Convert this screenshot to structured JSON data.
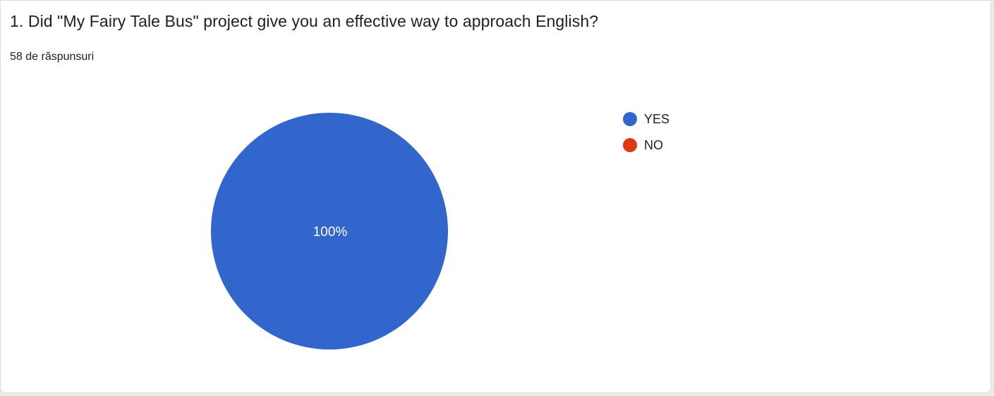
{
  "question": {
    "title": "1. Did \"My Fairy Tale Bus\" project give you an effective way to approach English?",
    "response_count": "58 de răspunsuri"
  },
  "chart_data": {
    "type": "pie",
    "categories": [
      "YES",
      "NO"
    ],
    "values": [
      100,
      0
    ],
    "unit": "%",
    "colors": [
      "#3366cc",
      "#dc3912"
    ],
    "data_labels": [
      "100%"
    ],
    "legend_position": "right"
  }
}
